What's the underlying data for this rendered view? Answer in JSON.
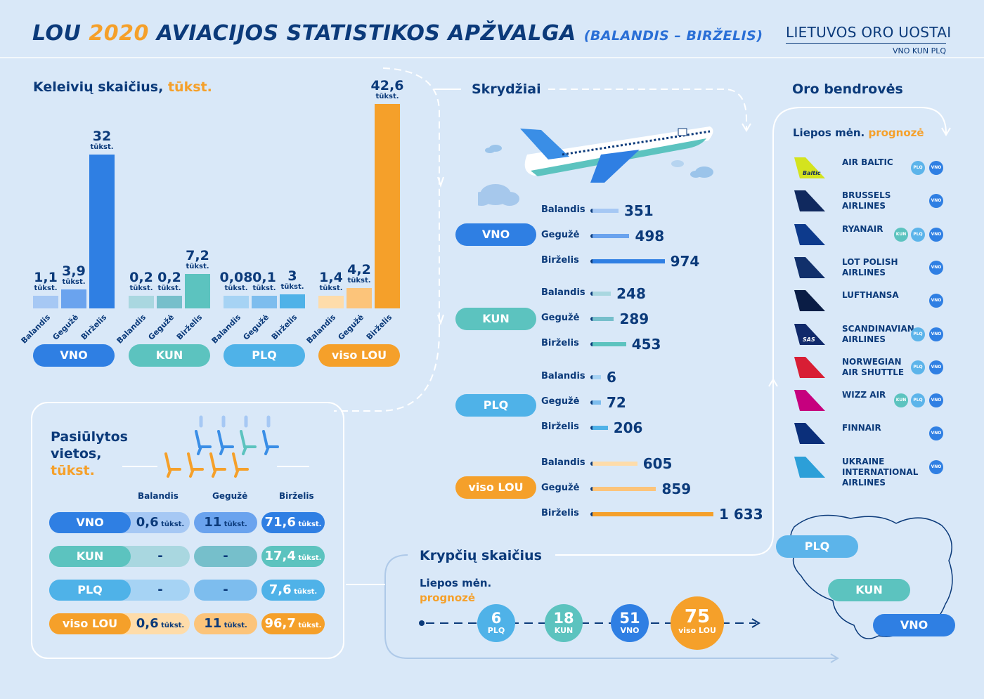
{
  "header": {
    "title_lou": "LOU",
    "title_year": "2020",
    "title_rest": "AVIACIJOS STATISTIKOS APŽVALGA",
    "title_period": "(BALANDIS – BIRŽELIS)",
    "logo_main": "LIETUVOS ORO UOSTAI",
    "logo_codes": "VNO KUN PLQ"
  },
  "colors": {
    "VNO": [
      "#a6c8f4",
      "#6aa3ee",
      "#2f7fe3"
    ],
    "KUN": [
      "#a9d7e0",
      "#76bfcb",
      "#5cc3bf"
    ],
    "PLQ": [
      "#a6d3f4",
      "#7dbdee",
      "#4fb2e8"
    ],
    "LOU": [
      "#fedcaa",
      "#fcc47a",
      "#f5a02a"
    ]
  },
  "passengers": {
    "title": "Keleivių skaičius,",
    "title_unit": "tūkst.",
    "unit": "tūkst.",
    "months": [
      "Balandis",
      "Gegužė",
      "Birželis"
    ]
  },
  "chart_data": [
    {
      "type": "bar",
      "title": "Keleivių skaičius, tūkst.",
      "categories": [
        "Balandis",
        "Gegužė",
        "Birželis"
      ],
      "series": [
        {
          "name": "VNO",
          "values": [
            1.1,
            3.9,
            32
          ],
          "labels": [
            "1,1",
            "3,9",
            "32"
          ]
        },
        {
          "name": "KUN",
          "values": [
            0.2,
            0.2,
            7.2
          ],
          "labels": [
            "0,2",
            "0,2",
            "7,2"
          ]
        },
        {
          "name": "PLQ",
          "values": [
            0.08,
            0.1,
            3
          ],
          "labels": [
            "0,08",
            "0,1",
            "3"
          ]
        },
        {
          "name": "viso LOU",
          "values": [
            1.4,
            4.2,
            42.6
          ],
          "labels": [
            "1,4",
            "4,2",
            "42,6"
          ]
        }
      ]
    },
    {
      "type": "bar",
      "title": "Skrydžiai",
      "categories": [
        "Balandis",
        "Gegužė",
        "Birželis"
      ],
      "series": [
        {
          "name": "VNO",
          "values": [
            351,
            498,
            974
          ],
          "labels": [
            "351",
            "498",
            "974"
          ]
        },
        {
          "name": "KUN",
          "values": [
            248,
            289,
            453
          ],
          "labels": [
            "248",
            "289",
            "453"
          ]
        },
        {
          "name": "PLQ",
          "values": [
            6,
            72,
            206
          ],
          "labels": [
            "6",
            "72",
            "206"
          ]
        },
        {
          "name": "viso LOU",
          "values": [
            605,
            859,
            1633
          ],
          "labels": [
            "605",
            "859",
            "1 633"
          ]
        }
      ]
    }
  ],
  "flights": {
    "title": "Skrydžiai"
  },
  "airlines": {
    "title": "Oro bendrovės",
    "subtitle": "Liepos mėn.",
    "subtitle_accent": "prognozė",
    "items": [
      {
        "name": "AIR BALTIC",
        "tags": [
          "PLQ",
          "VNO"
        ],
        "logo_text": "Baltic",
        "logo_color": "#d4e31e"
      },
      {
        "name": "BRUSSELS AIRLINES",
        "tags": [
          "VNO"
        ],
        "logo_color": "#10295e"
      },
      {
        "name": "RYANAIR",
        "tags": [
          "KUN",
          "PLQ",
          "VNO"
        ],
        "logo_color": "#0d3a8c"
      },
      {
        "name": "LOT POLISH AIRLINES",
        "tags": [
          "VNO"
        ],
        "logo_color": "#11306b"
      },
      {
        "name": "LUFTHANSA",
        "tags": [
          "VNO"
        ],
        "logo_color": "#0a1d45"
      },
      {
        "name": "SCANDINAVIAN AIRLINES",
        "tags": [
          "PLQ",
          "VNO"
        ],
        "logo_text": "SAS",
        "logo_color": "#10296a"
      },
      {
        "name": "NORWEGIAN AIR SHUTTLE",
        "tags": [
          "PLQ",
          "VNO"
        ],
        "logo_color": "#d81e34"
      },
      {
        "name": "WIZZ AIR",
        "tags": [
          "KUN",
          "PLQ",
          "VNO"
        ],
        "logo_color": "#c6007e"
      },
      {
        "name": "FINNAIR",
        "tags": [
          "VNO"
        ],
        "logo_color": "#0b2f7a"
      },
      {
        "name": "UKRAINE INTERNATIONAL AIRLINES",
        "tags": [
          "VNO"
        ],
        "logo_color": "#2c9fd8"
      }
    ]
  },
  "seats": {
    "title_line1": "Pasiūlytos",
    "title_line2": "vietos,",
    "title_unit": "tūkst.",
    "unit": "tūkst.",
    "months": [
      "Balandis",
      "Gegužė",
      "Birželis"
    ],
    "rows": [
      {
        "name": "VNO",
        "values": [
          "0,6",
          "11",
          "71,6"
        ]
      },
      {
        "name": "KUN",
        "values": [
          "-",
          "-",
          "17,4"
        ]
      },
      {
        "name": "PLQ",
        "values": [
          "-",
          "-",
          "7,6"
        ]
      },
      {
        "name": "viso LOU",
        "values": [
          "0,6",
          "11",
          "96,7"
        ]
      }
    ]
  },
  "destinations": {
    "title": "Krypčių skaičius",
    "subtitle": "Liepos mėn.",
    "subtitle_accent": "prognozė",
    "items": [
      {
        "value": "6",
        "code": "PLQ"
      },
      {
        "value": "18",
        "code": "KUN"
      },
      {
        "value": "51",
        "code": "VNO"
      },
      {
        "value": "75",
        "code": "viso LOU"
      }
    ]
  },
  "map": {
    "labels": [
      "PLQ",
      "KUN",
      "VNO"
    ]
  }
}
